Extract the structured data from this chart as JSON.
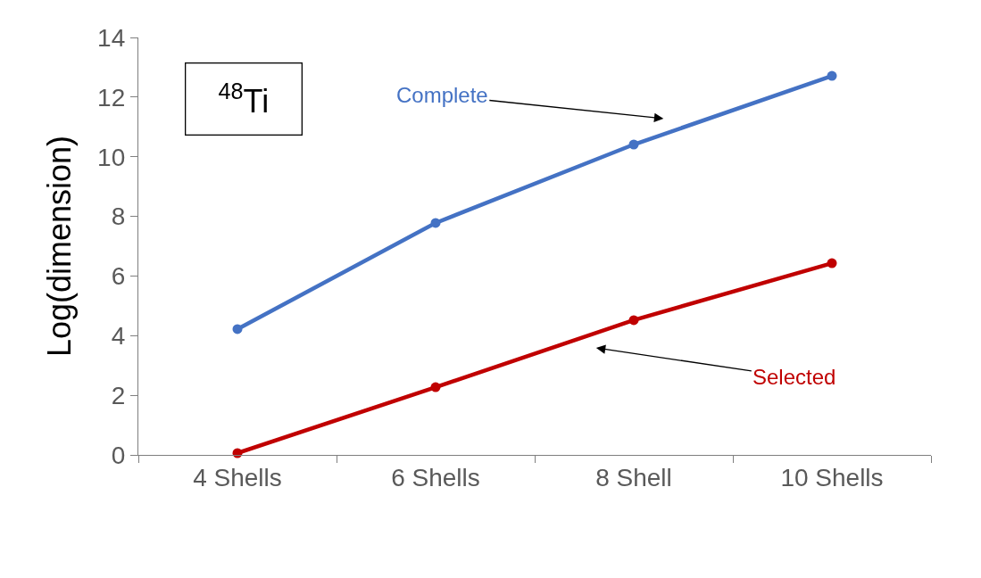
{
  "chart_data": {
    "type": "line",
    "ylabel": "Log(dimension)",
    "categories": [
      "4 Shells",
      "6 Shells",
      "8 Shell",
      "10 Shells"
    ],
    "series": [
      {
        "name": "Complete",
        "color": "#4472c4",
        "values": [
          4.22,
          7.78,
          10.41,
          12.71
        ]
      },
      {
        "name": "Selected",
        "color": "#c00000",
        "values": [
          0.06,
          2.27,
          4.52,
          6.43
        ]
      }
    ],
    "annotations": [
      "$^{48}$Ti"
    ],
    "ylim": [
      0,
      14
    ],
    "yticks": [
      0,
      2,
      4,
      6,
      8,
      10,
      12,
      14
    ],
    "grid": false,
    "legend": false,
    "marker": "circle",
    "line_style": "solid"
  }
}
